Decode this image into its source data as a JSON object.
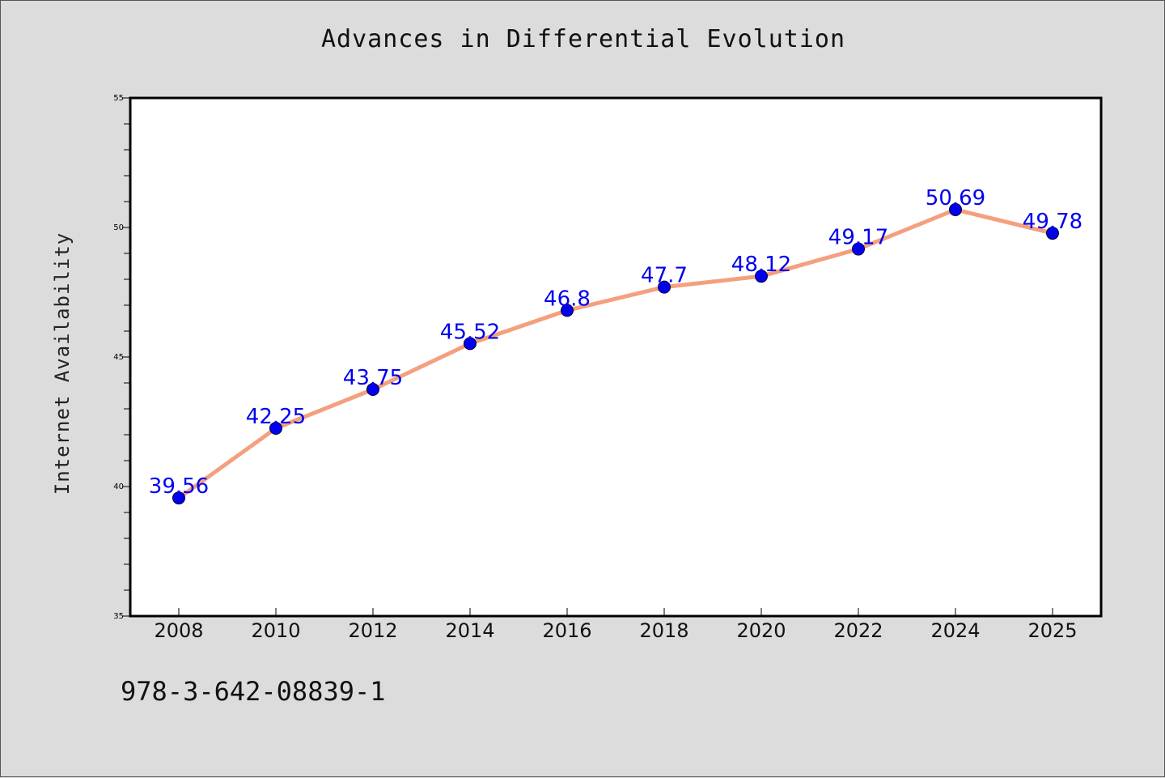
{
  "chart_data": {
    "type": "line",
    "title": "Advances in Differential Evolution",
    "xlabel": "",
    "ylabel": "Internet Availability",
    "categories": [
      "2008",
      "2010",
      "2012",
      "2014",
      "2016",
      "2018",
      "2020",
      "2022",
      "2024",
      "2025"
    ],
    "series": [
      {
        "values": [
          39.56,
          42.25,
          43.75,
          45.52,
          46.8,
          47.7,
          48.12,
          49.17,
          50.69,
          49.78
        ],
        "labels": [
          "39.56",
          "42.25",
          "43.75",
          "45.52",
          "46.8",
          "47.7",
          "48.12",
          "49.17",
          "50.69",
          "49.78"
        ],
        "line_color": "#f4a07e",
        "marker_color": "#0000ee"
      }
    ],
    "ylim": [
      35,
      55
    ],
    "y_ticks": [
      "35",
      "40",
      "45",
      "50",
      "55"
    ],
    "grid": false,
    "legend": "none",
    "label_color": "#0000ee"
  },
  "footer": {
    "code": "978-3-642-08839-1"
  }
}
